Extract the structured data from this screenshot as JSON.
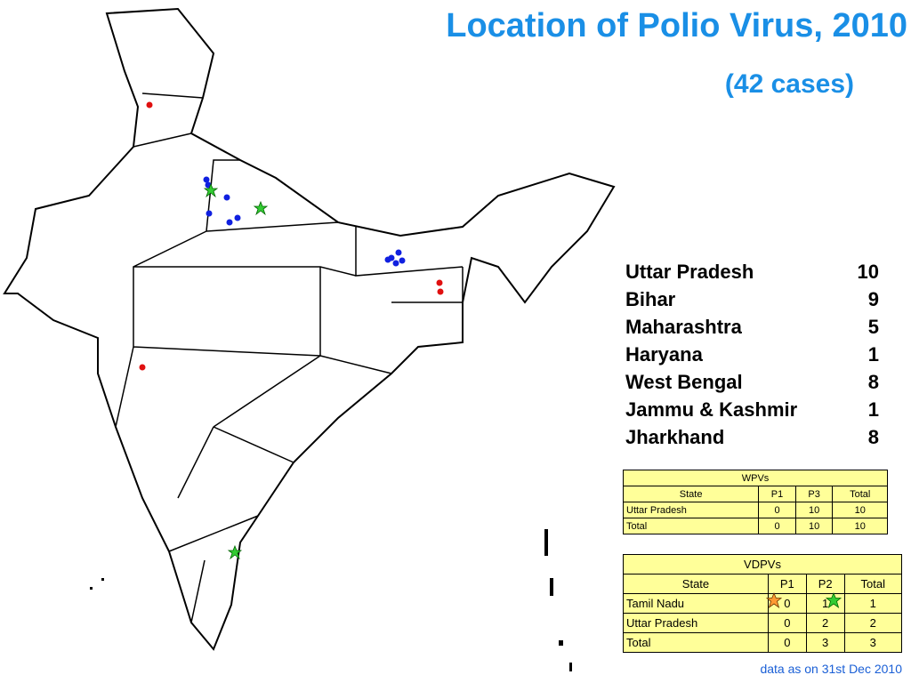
{
  "title": "Location of Polio Virus, 2010",
  "subtitle": "(42 cases)",
  "states": [
    {
      "name": "Uttar Pradesh",
      "count": 10
    },
    {
      "name": "Bihar",
      "count": 9
    },
    {
      "name": "Maharashtra",
      "count": 5
    },
    {
      "name": "Haryana",
      "count": 1
    },
    {
      "name": "West Bengal",
      "count": 8
    },
    {
      "name": "Jammu & Kashmir",
      "count": 1
    },
    {
      "name": "Jharkhand",
      "count": 8
    }
  ],
  "wpv_table": {
    "caption": "WPVs",
    "header": [
      "State",
      "P1",
      "P3",
      "Total"
    ],
    "rows": [
      [
        "Uttar Pradesh",
        0,
        10,
        10
      ],
      [
        "Total",
        0,
        10,
        10
      ]
    ]
  },
  "vdpv_table": {
    "caption": "VDPVs",
    "header": [
      "State",
      "P1",
      "P2",
      "Total"
    ],
    "rows": [
      [
        "Tamil Nadu",
        0,
        1,
        1
      ],
      [
        "Uttar Pradesh",
        0,
        2,
        2
      ],
      [
        "Total",
        0,
        3,
        3
      ]
    ]
  },
  "footnote": "data as on 31st Dec 2010"
}
